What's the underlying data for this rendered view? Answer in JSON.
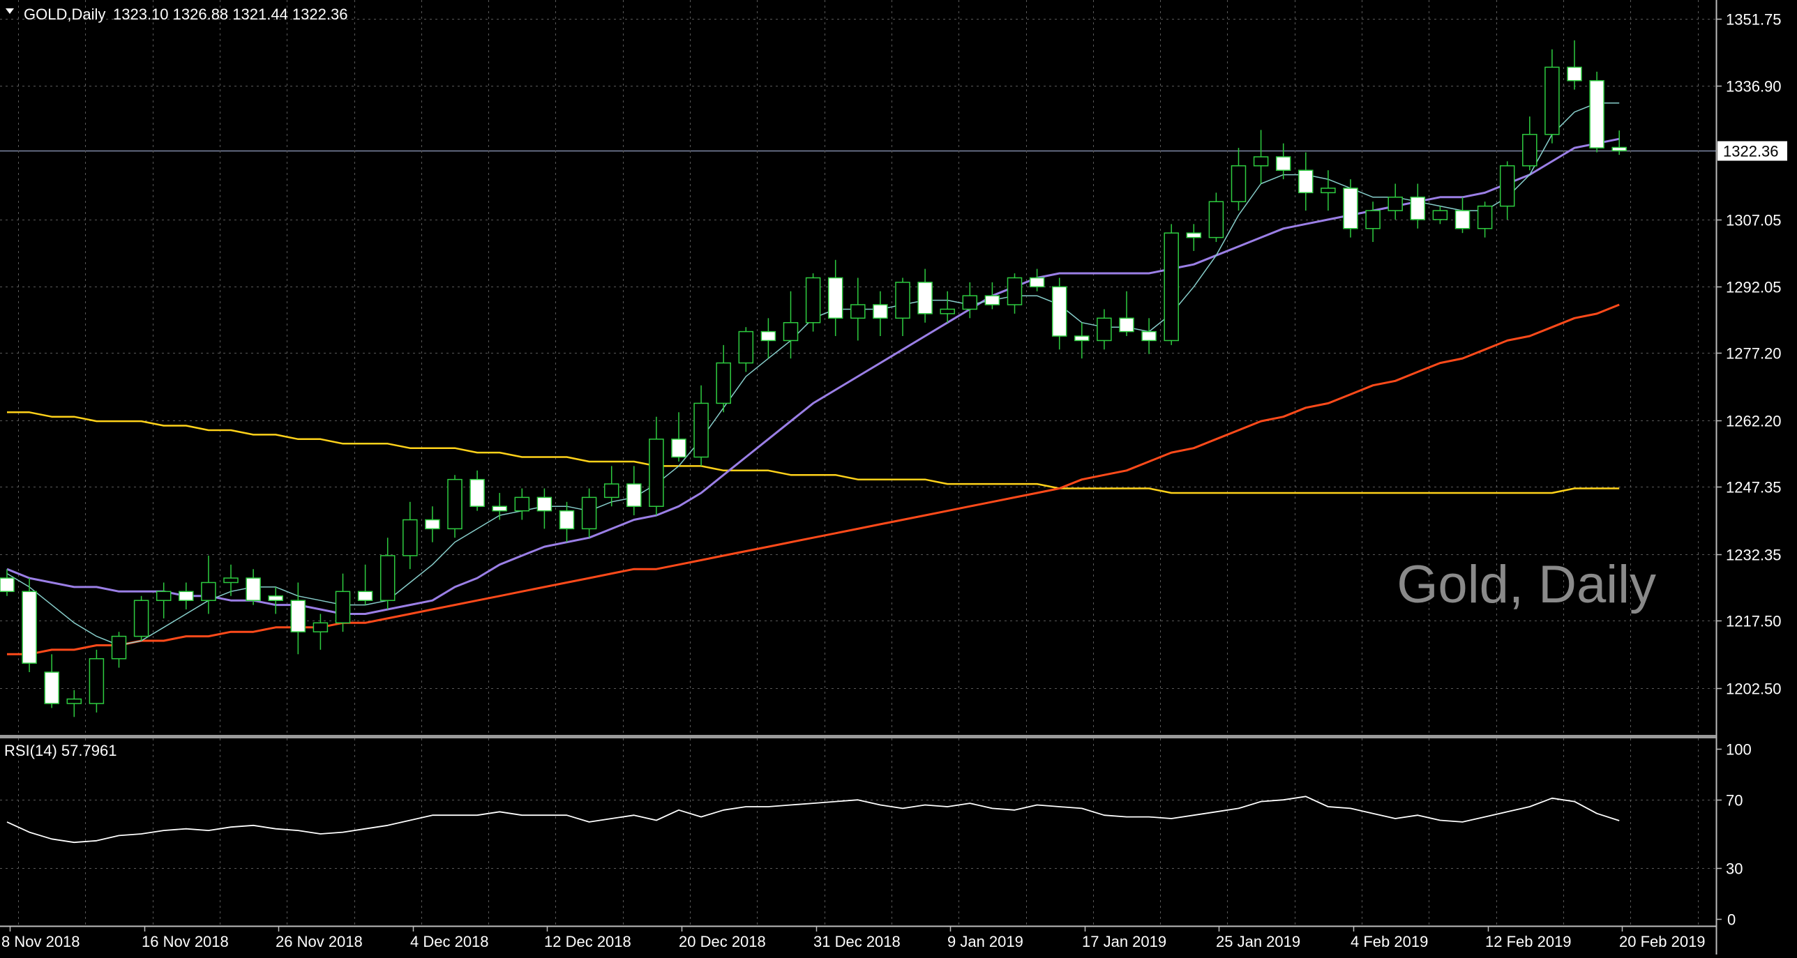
{
  "header": {
    "symbol_caption": "GOLD,Daily",
    "ohlc": "1323.10 1326.88 1321.44 1322.36",
    "dropdown_icon": "triangle-down-icon"
  },
  "watermark": "Gold, Daily",
  "rsi_panel": {
    "caption": "RSI(14) 57.7961"
  },
  "colors": {
    "background": "#000000",
    "grid": "#5a5a5a",
    "bull_candle": "#000000",
    "bear_candle": "#ffffff",
    "candle_outline": "#2ecc40",
    "ma_fast": "#87cecb",
    "ma_mid": "#9b7fe6",
    "ma_slow": "#ff4a1a",
    "ma_long": "#ffd21a",
    "rsi_line": "#ffffff",
    "current_price_line": "#7f8aa6"
  },
  "chart_data": [
    {
      "type": "candlestick",
      "title": "GOLD,Daily",
      "ylim": [
        1192,
        1356
      ],
      "price_ticks": [
        "1351.75",
        "1336.90",
        "1322.36",
        "1307.05",
        "1292.05",
        "1277.20",
        "1262.20",
        "1247.35",
        "1232.35",
        "1217.50",
        "1202.50"
      ],
      "current_price": "1322.36",
      "date_ticks": [
        "8 Nov 2018",
        "16 Nov 2018",
        "26 Nov 2018",
        "4 Dec 2018",
        "12 Dec 2018",
        "20 Dec 2018",
        "31 Dec 2018",
        "9 Jan 2019",
        "17 Jan 2019",
        "25 Jan 2019",
        "4 Feb 2019",
        "12 Feb 2019",
        "20 Feb 2019"
      ],
      "date_tick_index": [
        0,
        6,
        12,
        18,
        24,
        30,
        36,
        42,
        48,
        54,
        60,
        66,
        72
      ],
      "grid": true,
      "candles": [
        [
          1227,
          1229,
          1223,
          1224
        ],
        [
          1224,
          1227,
          1206,
          1208
        ],
        [
          1206,
          1210,
          1198,
          1199
        ],
        [
          1199,
          1202,
          1196,
          1200
        ],
        [
          1199,
          1211,
          1197,
          1209
        ],
        [
          1209,
          1215,
          1207,
          1214
        ],
        [
          1214,
          1223,
          1213,
          1222
        ],
        [
          1222,
          1226,
          1218,
          1224
        ],
        [
          1224,
          1226,
          1220,
          1222
        ],
        [
          1222,
          1232,
          1219,
          1226
        ],
        [
          1226,
          1230,
          1223,
          1227
        ],
        [
          1227,
          1229,
          1221,
          1222
        ],
        [
          1223,
          1225,
          1219,
          1222
        ],
        [
          1222,
          1226,
          1210,
          1215
        ],
        [
          1215,
          1219,
          1211,
          1217
        ],
        [
          1217,
          1228,
          1215,
          1224
        ],
        [
          1224,
          1230,
          1221,
          1222
        ],
        [
          1222,
          1236,
          1220,
          1232
        ],
        [
          1232,
          1244,
          1229,
          1240
        ],
        [
          1240,
          1243,
          1235,
          1238
        ],
        [
          1238,
          1250,
          1236,
          1249
        ],
        [
          1249,
          1251,
          1242,
          1243
        ],
        [
          1243,
          1246,
          1240,
          1242
        ],
        [
          1242,
          1247,
          1240,
          1245
        ],
        [
          1245,
          1247,
          1238,
          1242
        ],
        [
          1242,
          1244,
          1235,
          1238
        ],
        [
          1238,
          1247,
          1236,
          1245
        ],
        [
          1245,
          1252,
          1243,
          1248
        ],
        [
          1248,
          1252,
          1241,
          1243
        ],
        [
          1243,
          1263,
          1241,
          1258
        ],
        [
          1258,
          1264,
          1253,
          1254
        ],
        [
          1254,
          1270,
          1252,
          1266
        ],
        [
          1266,
          1279,
          1264,
          1275
        ],
        [
          1275,
          1283,
          1273,
          1282
        ],
        [
          1282,
          1285,
          1276,
          1280
        ],
        [
          1280,
          1291,
          1276,
          1284
        ],
        [
          1284,
          1295,
          1282,
          1294
        ],
        [
          1294,
          1298,
          1281,
          1285
        ],
        [
          1285,
          1294,
          1280,
          1288
        ],
        [
          1288,
          1291,
          1281,
          1285
        ],
        [
          1285,
          1294,
          1281,
          1293
        ],
        [
          1293,
          1296,
          1284,
          1286
        ],
        [
          1286,
          1291,
          1284,
          1287
        ],
        [
          1287,
          1293,
          1285,
          1290
        ],
        [
          1290,
          1293,
          1287,
          1288
        ],
        [
          1288,
          1295,
          1286,
          1294
        ],
        [
          1294,
          1296,
          1291,
          1292
        ],
        [
          1292,
          1294,
          1278,
          1281
        ],
        [
          1281,
          1284,
          1276,
          1280
        ],
        [
          1280,
          1287,
          1278,
          1285
        ],
        [
          1285,
          1291,
          1281,
          1282
        ],
        [
          1282,
          1285,
          1277,
          1280
        ],
        [
          1280,
          1306,
          1279,
          1304
        ],
        [
          1304,
          1306,
          1300,
          1303
        ],
        [
          1303,
          1313,
          1302,
          1311
        ],
        [
          1311,
          1323,
          1309,
          1319
        ],
        [
          1319,
          1327,
          1315,
          1321
        ],
        [
          1321,
          1324,
          1316,
          1318
        ],
        [
          1318,
          1322,
          1309,
          1313
        ],
        [
          1313,
          1318,
          1309,
          1314
        ],
        [
          1314,
          1316,
          1303,
          1305
        ],
        [
          1305,
          1311,
          1302,
          1309
        ],
        [
          1309,
          1315,
          1307,
          1312
        ],
        [
          1312,
          1315,
          1305,
          1307
        ],
        [
          1307,
          1310,
          1306,
          1309
        ],
        [
          1309,
          1312,
          1304,
          1305
        ],
        [
          1305,
          1311,
          1303,
          1310
        ],
        [
          1310,
          1320,
          1307,
          1319
        ],
        [
          1319,
          1330,
          1318,
          1326
        ],
        [
          1326,
          1345,
          1324,
          1341
        ],
        [
          1341,
          1347,
          1336,
          1338
        ],
        [
          1338,
          1340,
          1322,
          1323
        ],
        [
          1323.1,
          1326.88,
          1321.44,
          1322.36
        ]
      ],
      "series": [
        {
          "values": [
            1228,
            1225,
            1221,
            1217,
            1214,
            1212,
            1213,
            1216,
            1219,
            1222,
            1224,
            1225,
            1225,
            1223,
            1222,
            1221,
            1221,
            1222,
            1226,
            1230,
            1235,
            1238,
            1241,
            1242,
            1243,
            1243,
            1242,
            1244,
            1245,
            1248,
            1252,
            1258,
            1265,
            1272,
            1276,
            1280,
            1285,
            1287,
            1287,
            1287,
            1288,
            1289,
            1289,
            1288,
            1289,
            1290,
            1290,
            1288,
            1284,
            1283,
            1283,
            1282,
            1286,
            1292,
            1299,
            1308,
            1315,
            1317,
            1317,
            1316,
            1314,
            1312,
            1312,
            1311,
            1310,
            1309,
            1309,
            1312,
            1317,
            1326,
            1331,
            1333,
            1333
          ]
        },
        {
          "values": [
            1229,
            1227,
            1226,
            1225,
            1225,
            1224,
            1224,
            1224,
            1223,
            1223,
            1222,
            1222,
            1221,
            1221,
            1220,
            1219,
            1219,
            1220,
            1221,
            1222,
            1225,
            1227,
            1230,
            1232,
            1234,
            1235,
            1236,
            1238,
            1240,
            1241,
            1243,
            1246,
            1250,
            1254,
            1258,
            1262,
            1266,
            1269,
            1272,
            1275,
            1278,
            1281,
            1284,
            1287,
            1290,
            1292,
            1294,
            1295,
            1295,
            1295,
            1295,
            1295,
            1296,
            1297,
            1299,
            1301,
            1303,
            1305,
            1306,
            1307,
            1308,
            1309,
            1310,
            1311,
            1312,
            1312,
            1313,
            1315,
            1317,
            1320,
            1323,
            1324,
            1325
          ]
        },
        {
          "values": [
            1210,
            1210,
            1211,
            1211,
            1212,
            1212,
            1213,
            1213,
            1214,
            1214,
            1215,
            1215,
            1216,
            1216,
            1216,
            1217,
            1217,
            1218,
            1219,
            1220,
            1221,
            1222,
            1223,
            1224,
            1225,
            1226,
            1227,
            1228,
            1229,
            1229,
            1230,
            1231,
            1232,
            1233,
            1234,
            1235,
            1236,
            1237,
            1238,
            1239,
            1240,
            1241,
            1242,
            1243,
            1244,
            1245,
            1246,
            1247,
            1249,
            1250,
            1251,
            1253,
            1255,
            1256,
            1258,
            1260,
            1262,
            1263,
            1265,
            1266,
            1268,
            1270,
            1271,
            1273,
            1275,
            1276,
            1278,
            1280,
            1281,
            1283,
            1285,
            1286,
            1288
          ]
        },
        {
          "values": [
            1264,
            1264,
            1263,
            1263,
            1262,
            1262,
            1262,
            1261,
            1261,
            1260,
            1260,
            1259,
            1259,
            1258,
            1258,
            1257,
            1257,
            1257,
            1256,
            1256,
            1256,
            1255,
            1255,
            1254,
            1254,
            1254,
            1253,
            1253,
            1253,
            1252,
            1252,
            1252,
            1251,
            1251,
            1251,
            1250,
            1250,
            1250,
            1249,
            1249,
            1249,
            1249,
            1248,
            1248,
            1248,
            1248,
            1248,
            1247,
            1247,
            1247,
            1247,
            1247,
            1246,
            1246,
            1246,
            1246,
            1246,
            1246,
            1246,
            1246,
            1246,
            1246,
            1246,
            1246,
            1246,
            1246,
            1246,
            1246,
            1246,
            1246,
            1247,
            1247,
            1247
          ]
        }
      ]
    },
    {
      "type": "line",
      "title": "RSI(14) 57.7961",
      "ylim": [
        0,
        100
      ],
      "y_ticks": [
        "100",
        "70",
        "30",
        "0"
      ],
      "series": [
        {
          "values": [
            57,
            51,
            47,
            45,
            46,
            49,
            50,
            52,
            53,
            52,
            54,
            55,
            53,
            52,
            50,
            51,
            53,
            55,
            58,
            61,
            61,
            61,
            63,
            61,
            61,
            61,
            57,
            59,
            61,
            58,
            64,
            60,
            64,
            66,
            66,
            67,
            68,
            69,
            70,
            67,
            65,
            67,
            66,
            68,
            65,
            64,
            67,
            66,
            65,
            61,
            60,
            60,
            59,
            61,
            63,
            65,
            69,
            70,
            72,
            66,
            65,
            62,
            59,
            61,
            58,
            57,
            60,
            63,
            66,
            71,
            69,
            62,
            57.8
          ]
        }
      ]
    }
  ]
}
